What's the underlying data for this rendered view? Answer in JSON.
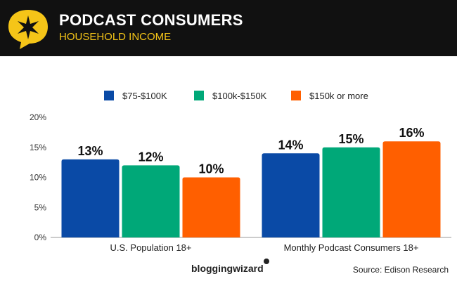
{
  "header": {
    "title": "PODCAST CONSUMERS",
    "subtitle": "HOUSEHOLD INCOME",
    "badge_color": "#f5c518"
  },
  "legend": {
    "items": [
      {
        "label": "$75-$100K",
        "color": "#0a4aa6"
      },
      {
        "label": "$100k-$150K",
        "color": "#00a878"
      },
      {
        "label": "$150k or more",
        "color": "#ff5f00"
      }
    ]
  },
  "chart_data": {
    "type": "bar",
    "categories": [
      "U.S. Population 18+",
      "Monthly Podcast Consumers 18+"
    ],
    "series": [
      {
        "name": "$75-$100K",
        "color": "#0a4aa6",
        "values": [
          13,
          14
        ],
        "labels": [
          "13%",
          "14%"
        ]
      },
      {
        "name": "$100k-$150K",
        "color": "#00a878",
        "values": [
          12,
          15
        ],
        "labels": [
          "12%",
          "15%"
        ]
      },
      {
        "name": "$150k or more",
        "color": "#ff5f00",
        "values": [
          10,
          16
        ],
        "labels": [
          "10%",
          "16%"
        ]
      }
    ],
    "ylim": [
      0,
      20
    ],
    "yticks": [
      0,
      5,
      10,
      15,
      20
    ],
    "ytick_labels": [
      "0%",
      "5%",
      "10%",
      "15%",
      "20%"
    ],
    "xlabel": "",
    "ylabel": "",
    "grid": false
  },
  "footer": {
    "brand": "bloggingwizard",
    "source": "Source: Edison Research"
  }
}
